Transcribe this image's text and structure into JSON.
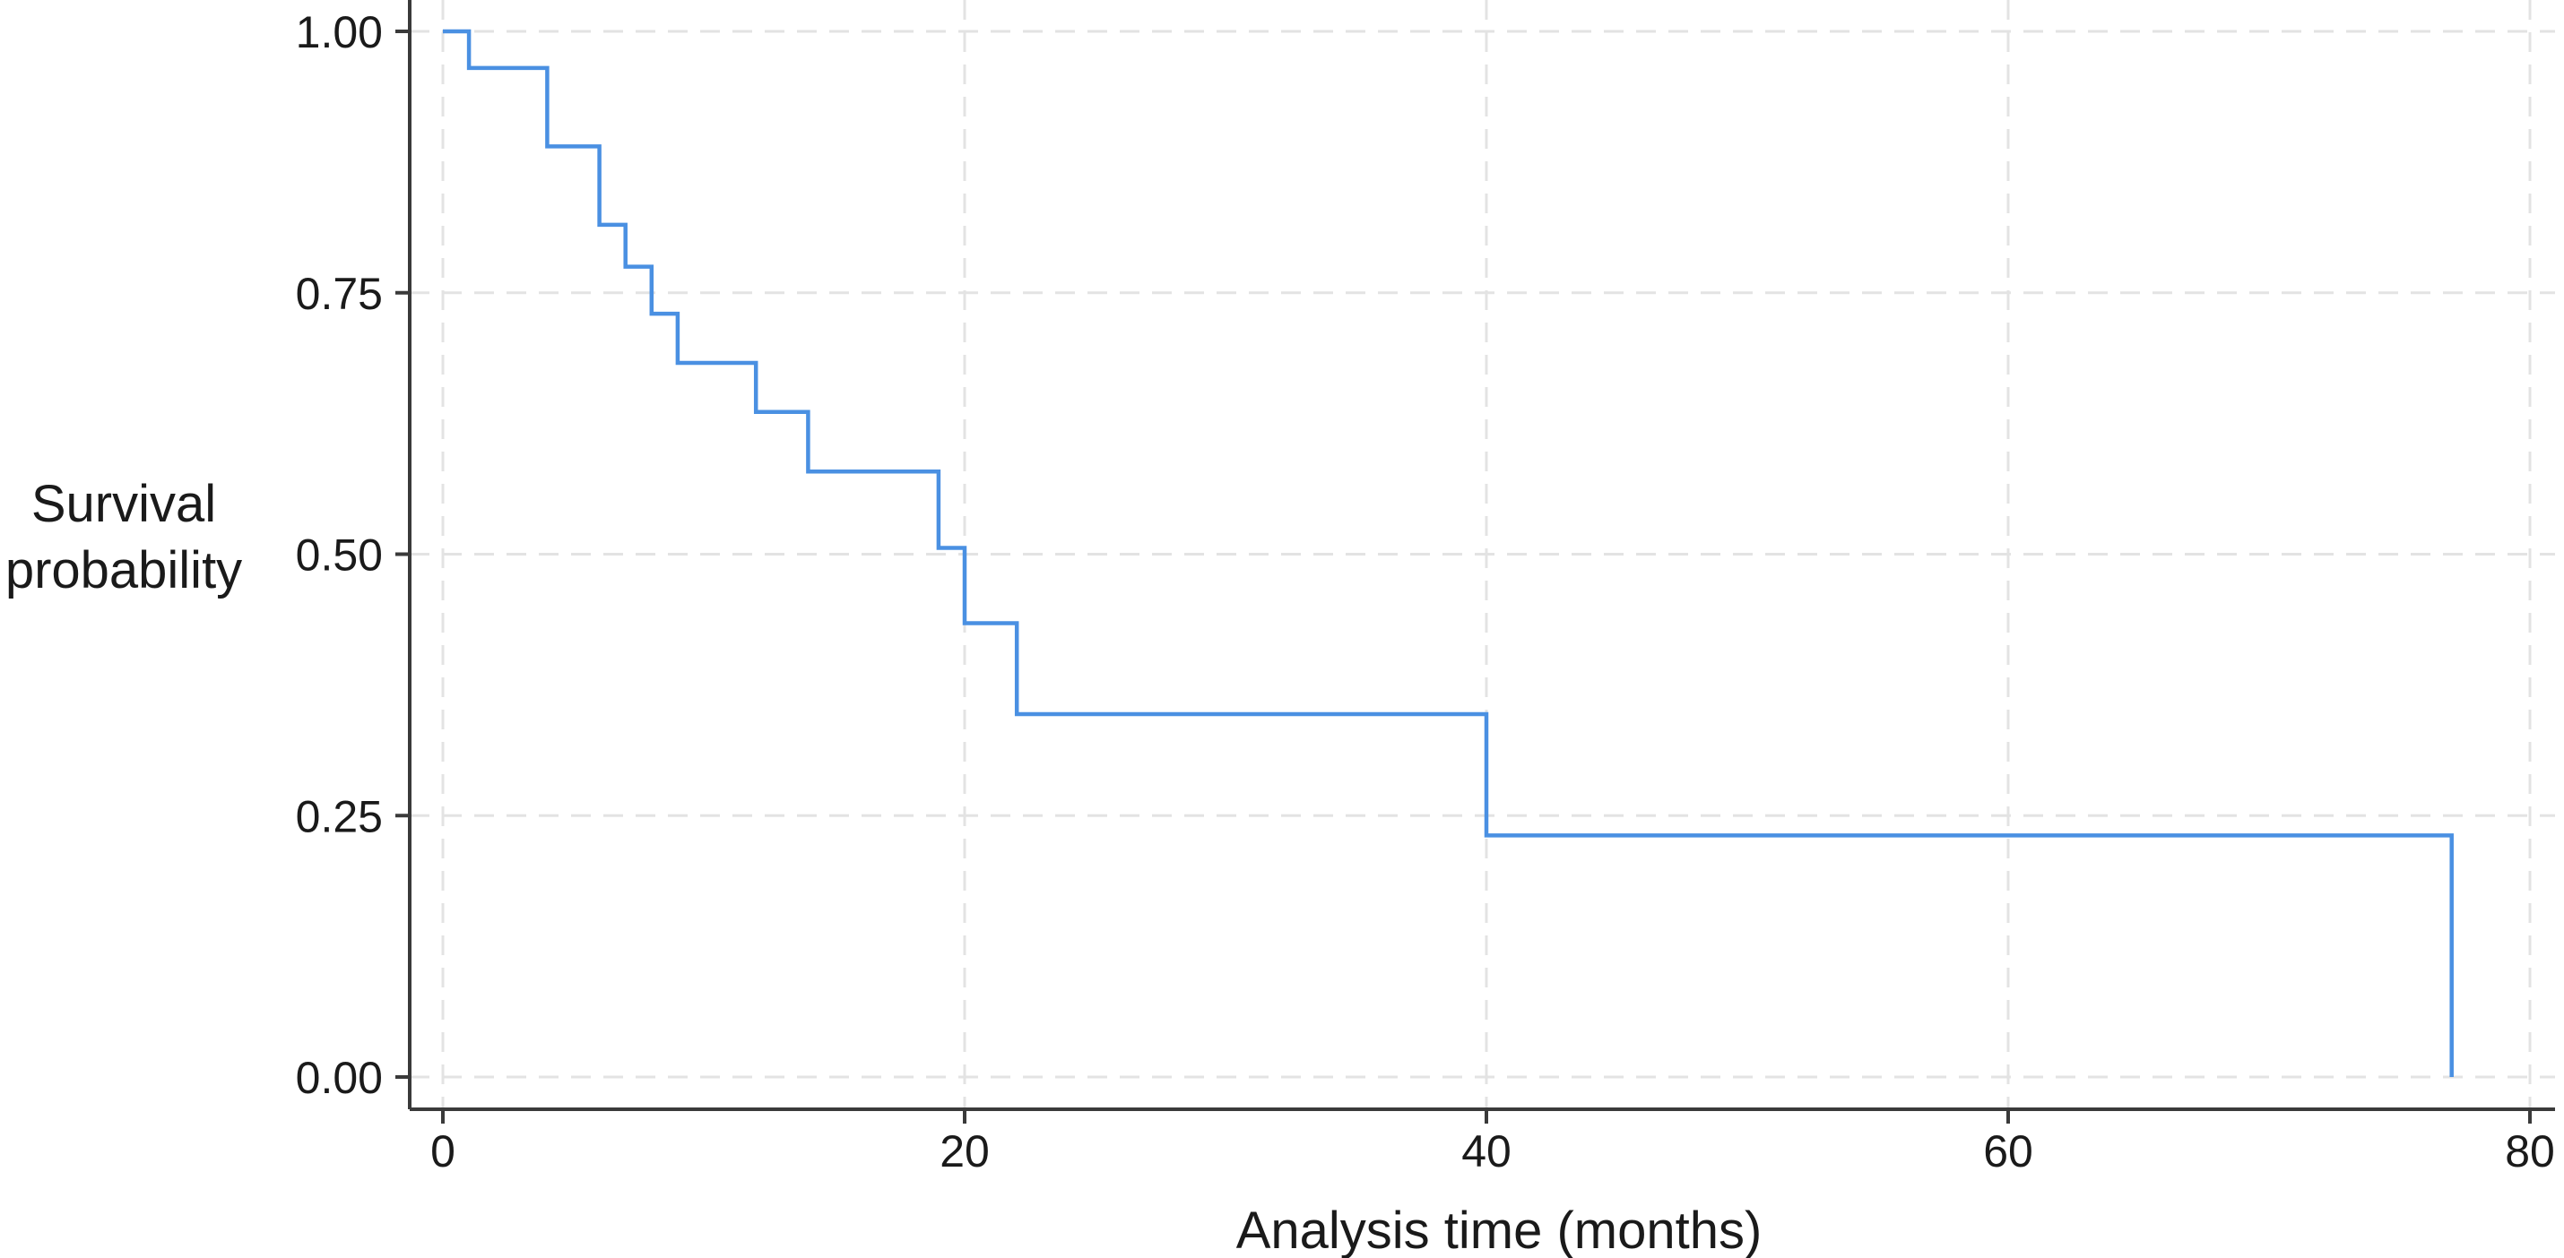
{
  "chart_data": {
    "type": "line",
    "subtype": "kaplan-meier-step",
    "title": "",
    "xlabel": "Analysis time (months)",
    "ylabel_lines": [
      "Survival",
      "probability"
    ],
    "xlim": [
      0,
      80
    ],
    "ylim": [
      0,
      1
    ],
    "x_ticks": [
      0,
      20,
      40,
      60,
      80
    ],
    "x_tick_labels": [
      "0",
      "20",
      "40",
      "60",
      "80"
    ],
    "y_ticks": [
      0,
      0.25,
      0.5,
      0.75,
      1
    ],
    "y_tick_labels": [
      "0.00",
      "0.25",
      "0.50",
      "0.75",
      "1.00"
    ],
    "grid": true,
    "series": [
      {
        "color": "#4a90e2",
        "x": [
          0,
          1,
          4,
          6,
          7,
          8,
          9,
          12,
          14,
          19,
          20,
          22,
          40,
          77,
          77
        ],
        "y": [
          1.0,
          0.965,
          0.89,
          0.815,
          0.775,
          0.73,
          0.683,
          0.636,
          0.579,
          0.506,
          0.434,
          0.347,
          0.231,
          0.231,
          0.0
        ]
      }
    ]
  }
}
